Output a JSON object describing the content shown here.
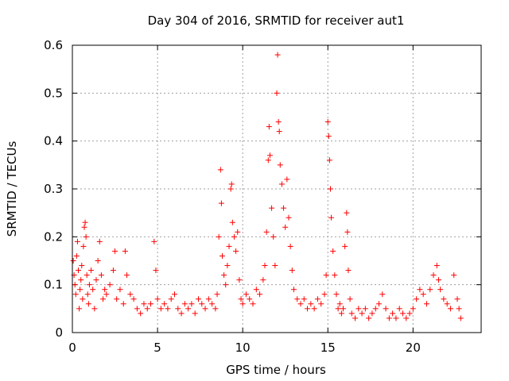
{
  "chart_data": {
    "type": "scatter",
    "title": "Day 304 of 2016, SRMTID for receiver aut1",
    "xlabel": "GPS time / hours",
    "ylabel": "SRMTID / TECUs",
    "xlim": [
      0,
      24
    ],
    "ylim": [
      0,
      0.6
    ],
    "xticks": [
      0,
      5,
      10,
      15,
      20
    ],
    "xtick_labels": [
      "0",
      "5",
      "10",
      "15",
      "20"
    ],
    "yticks": [
      0,
      0.1,
      0.2,
      0.3,
      0.4,
      0.5,
      0.6
    ],
    "ytick_labels": [
      "0",
      "0.1",
      "0.2",
      "0.3",
      "0.4",
      "0.5",
      "0.6"
    ],
    "grid": true,
    "marker": "+",
    "marker_color": "#ff0000",
    "series": [
      {
        "name": "SRMTID",
        "points": [
          [
            0.05,
            0.15
          ],
          [
            0.1,
            0.12
          ],
          [
            0.15,
            0.1
          ],
          [
            0.2,
            0.08
          ],
          [
            0.25,
            0.16
          ],
          [
            0.3,
            0.19
          ],
          [
            0.35,
            0.13
          ],
          [
            0.4,
            0.05
          ],
          [
            0.45,
            0.09
          ],
          [
            0.5,
            0.11
          ],
          [
            0.55,
            0.14
          ],
          [
            0.6,
            0.07
          ],
          [
            0.65,
            0.18
          ],
          [
            0.7,
            0.22
          ],
          [
            0.75,
            0.23
          ],
          [
            0.8,
            0.2
          ],
          [
            0.85,
            0.12
          ],
          [
            0.9,
            0.08
          ],
          [
            0.95,
            0.06
          ],
          [
            1.0,
            0.1
          ],
          [
            1.1,
            0.13
          ],
          [
            1.2,
            0.09
          ],
          [
            1.3,
            0.05
          ],
          [
            1.4,
            0.11
          ],
          [
            1.5,
            0.15
          ],
          [
            1.6,
            0.19
          ],
          [
            1.7,
            0.12
          ],
          [
            1.8,
            0.07
          ],
          [
            1.9,
            0.09
          ],
          [
            2.0,
            0.08
          ],
          [
            2.2,
            0.1
          ],
          [
            2.4,
            0.13
          ],
          [
            2.5,
            0.17
          ],
          [
            2.6,
            0.07
          ],
          [
            2.8,
            0.09
          ],
          [
            3.0,
            0.06
          ],
          [
            3.1,
            0.17
          ],
          [
            3.2,
            0.12
          ],
          [
            3.4,
            0.08
          ],
          [
            3.6,
            0.07
          ],
          [
            3.8,
            0.05
          ],
          [
            4.0,
            0.04
          ],
          [
            4.2,
            0.06
          ],
          [
            4.4,
            0.05
          ],
          [
            4.6,
            0.06
          ],
          [
            4.8,
            0.19
          ],
          [
            4.9,
            0.13
          ],
          [
            5.0,
            0.07
          ],
          [
            5.2,
            0.05
          ],
          [
            5.4,
            0.06
          ],
          [
            5.6,
            0.05
          ],
          [
            5.8,
            0.07
          ],
          [
            6.0,
            0.08
          ],
          [
            6.2,
            0.05
          ],
          [
            6.4,
            0.04
          ],
          [
            6.6,
            0.06
          ],
          [
            6.8,
            0.05
          ],
          [
            7.0,
            0.06
          ],
          [
            7.2,
            0.04
          ],
          [
            7.4,
            0.07
          ],
          [
            7.6,
            0.06
          ],
          [
            7.8,
            0.05
          ],
          [
            8.0,
            0.07
          ],
          [
            8.2,
            0.06
          ],
          [
            8.4,
            0.05
          ],
          [
            8.5,
            0.08
          ],
          [
            8.6,
            0.2
          ],
          [
            8.7,
            0.34
          ],
          [
            8.75,
            0.27
          ],
          [
            8.8,
            0.16
          ],
          [
            8.9,
            0.12
          ],
          [
            9.0,
            0.1
          ],
          [
            9.1,
            0.14
          ],
          [
            9.2,
            0.18
          ],
          [
            9.3,
            0.3
          ],
          [
            9.35,
            0.31
          ],
          [
            9.4,
            0.23
          ],
          [
            9.5,
            0.2
          ],
          [
            9.6,
            0.17
          ],
          [
            9.7,
            0.21
          ],
          [
            9.8,
            0.11
          ],
          [
            9.9,
            0.07
          ],
          [
            10.0,
            0.06
          ],
          [
            10.2,
            0.08
          ],
          [
            10.4,
            0.07
          ],
          [
            10.6,
            0.06
          ],
          [
            10.8,
            0.09
          ],
          [
            11.0,
            0.08
          ],
          [
            11.2,
            0.11
          ],
          [
            11.3,
            0.14
          ],
          [
            11.4,
            0.21
          ],
          [
            11.5,
            0.36
          ],
          [
            11.55,
            0.43
          ],
          [
            11.6,
            0.37
          ],
          [
            11.7,
            0.26
          ],
          [
            11.8,
            0.2
          ],
          [
            11.9,
            0.14
          ],
          [
            12.0,
            0.5
          ],
          [
            12.05,
            0.58
          ],
          [
            12.1,
            0.44
          ],
          [
            12.15,
            0.42
          ],
          [
            12.2,
            0.35
          ],
          [
            12.3,
            0.31
          ],
          [
            12.4,
            0.26
          ],
          [
            12.5,
            0.22
          ],
          [
            12.6,
            0.32
          ],
          [
            12.7,
            0.24
          ],
          [
            12.8,
            0.18
          ],
          [
            12.9,
            0.13
          ],
          [
            13.0,
            0.09
          ],
          [
            13.2,
            0.07
          ],
          [
            13.4,
            0.06
          ],
          [
            13.6,
            0.07
          ],
          [
            13.8,
            0.05
          ],
          [
            14.0,
            0.06
          ],
          [
            14.2,
            0.05
          ],
          [
            14.4,
            0.07
          ],
          [
            14.6,
            0.06
          ],
          [
            14.8,
            0.08
          ],
          [
            14.9,
            0.12
          ],
          [
            15.0,
            0.44
          ],
          [
            15.05,
            0.41
          ],
          [
            15.1,
            0.36
          ],
          [
            15.15,
            0.3
          ],
          [
            15.2,
            0.24
          ],
          [
            15.3,
            0.17
          ],
          [
            15.4,
            0.12
          ],
          [
            15.5,
            0.08
          ],
          [
            15.6,
            0.05
          ],
          [
            15.7,
            0.06
          ],
          [
            15.8,
            0.04
          ],
          [
            15.9,
            0.05
          ],
          [
            16.0,
            0.18
          ],
          [
            16.1,
            0.25
          ],
          [
            16.15,
            0.21
          ],
          [
            16.2,
            0.13
          ],
          [
            16.3,
            0.07
          ],
          [
            16.4,
            0.04
          ],
          [
            16.6,
            0.03
          ],
          [
            16.8,
            0.05
          ],
          [
            17.0,
            0.04
          ],
          [
            17.2,
            0.05
          ],
          [
            17.4,
            0.03
          ],
          [
            17.6,
            0.04
          ],
          [
            17.8,
            0.05
          ],
          [
            18.0,
            0.06
          ],
          [
            18.2,
            0.08
          ],
          [
            18.4,
            0.05
          ],
          [
            18.6,
            0.03
          ],
          [
            18.8,
            0.04
          ],
          [
            19.0,
            0.03
          ],
          [
            19.2,
            0.05
          ],
          [
            19.4,
            0.04
          ],
          [
            19.6,
            0.03
          ],
          [
            19.8,
            0.04
          ],
          [
            20.0,
            0.05
          ],
          [
            20.2,
            0.07
          ],
          [
            20.4,
            0.09
          ],
          [
            20.6,
            0.08
          ],
          [
            20.8,
            0.06
          ],
          [
            21.0,
            0.09
          ],
          [
            21.2,
            0.12
          ],
          [
            21.4,
            0.14
          ],
          [
            21.5,
            0.11
          ],
          [
            21.6,
            0.09
          ],
          [
            21.8,
            0.07
          ],
          [
            22.0,
            0.06
          ],
          [
            22.2,
            0.05
          ],
          [
            22.4,
            0.12
          ],
          [
            22.6,
            0.07
          ],
          [
            22.7,
            0.05
          ],
          [
            22.8,
            0.03
          ]
        ]
      }
    ]
  }
}
